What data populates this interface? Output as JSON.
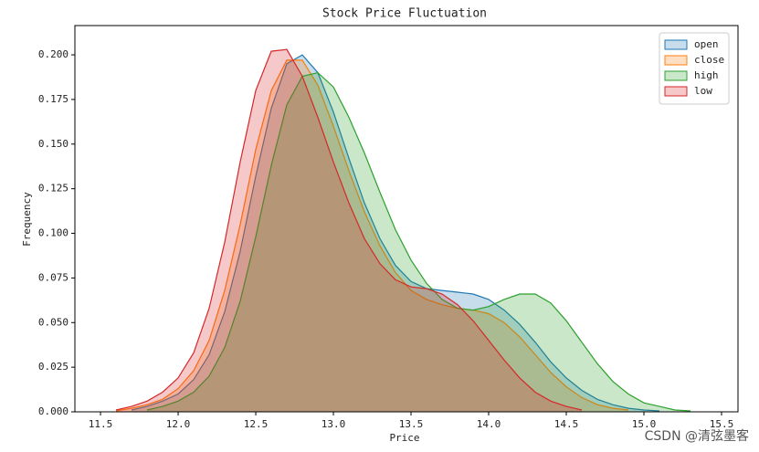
{
  "chart_data": {
    "type": "area",
    "title": "Stock Price Fluctuation",
    "x_label": "Price",
    "y_label": "Frequency",
    "x": [
      11.6,
      11.7,
      11.8,
      11.9,
      12.0,
      12.1,
      12.2,
      12.3,
      12.4,
      12.5,
      12.6,
      12.7,
      12.8,
      12.9,
      13.0,
      13.1,
      13.2,
      13.3,
      13.4,
      13.5,
      13.6,
      13.7,
      13.8,
      13.9,
      14.0,
      14.1,
      14.2,
      14.3,
      14.4,
      14.5,
      14.6,
      14.7,
      14.8,
      14.9,
      15.0,
      15.1,
      15.2,
      15.3,
      15.4
    ],
    "series": [
      {
        "name": "open",
        "color": "#1f77b4",
        "values": [
          null,
          0.001,
          0.003,
          0.006,
          0.01,
          0.018,
          0.032,
          0.056,
          0.09,
          0.132,
          0.17,
          0.195,
          0.2,
          0.19,
          0.168,
          0.142,
          0.117,
          0.097,
          0.082,
          0.073,
          0.069,
          0.068,
          0.067,
          0.066,
          0.063,
          0.057,
          0.049,
          0.039,
          0.028,
          0.019,
          0.012,
          0.007,
          0.004,
          0.002,
          0.001,
          0.0005,
          null,
          null,
          null
        ]
      },
      {
        "name": "close",
        "color": "#ff7f0e",
        "values": [
          0.0005,
          0.002,
          0.004,
          0.007,
          0.013,
          0.023,
          0.04,
          0.068,
          0.105,
          0.147,
          0.18,
          0.197,
          0.197,
          0.183,
          0.16,
          0.135,
          0.112,
          0.093,
          0.078,
          0.068,
          0.063,
          0.06,
          0.058,
          0.057,
          0.055,
          0.05,
          0.042,
          0.032,
          0.022,
          0.014,
          0.008,
          0.004,
          0.002,
          0.001,
          null,
          null,
          null,
          null,
          null
        ]
      },
      {
        "name": "high",
        "color": "#2ca02c",
        "values": [
          null,
          null,
          0.001,
          0.003,
          0.006,
          0.011,
          0.02,
          0.036,
          0.062,
          0.098,
          0.138,
          0.172,
          0.188,
          0.19,
          0.182,
          0.165,
          0.145,
          0.123,
          0.102,
          0.085,
          0.072,
          0.063,
          0.058,
          0.057,
          0.059,
          0.063,
          0.066,
          0.066,
          0.061,
          0.051,
          0.039,
          0.027,
          0.017,
          0.01,
          0.005,
          0.003,
          0.001,
          0.0005,
          null
        ]
      },
      {
        "name": "low",
        "color": "#d62728",
        "values": [
          0.001,
          0.003,
          0.006,
          0.011,
          0.019,
          0.033,
          0.058,
          0.095,
          0.14,
          0.18,
          0.202,
          0.203,
          0.188,
          0.165,
          0.14,
          0.117,
          0.097,
          0.083,
          0.074,
          0.07,
          0.069,
          0.066,
          0.06,
          0.051,
          0.04,
          0.029,
          0.019,
          0.011,
          0.006,
          0.003,
          0.001,
          null,
          null,
          null,
          null,
          null,
          null,
          null,
          null
        ]
      }
    ],
    "xlim": [
      11.335,
      15.606
    ],
    "ylim": [
      0,
      0.2164
    ],
    "xticks": [
      11.5,
      {
        "value": 12,
        "label": "12.0"
      },
      12.5,
      {
        "value": 13,
        "label": "13.0"
      },
      13.5,
      {
        "value": 14,
        "label": "14.0"
      },
      14.5,
      {
        "value": 15,
        "label": "15.0"
      },
      15.5
    ],
    "yticks": [
      {
        "value": 0,
        "label": "0.000"
      },
      {
        "value": 0.025,
        "label": "0.025"
      },
      {
        "value": 0.05,
        "label": "0.050"
      },
      {
        "value": 0.075,
        "label": "0.075"
      },
      {
        "value": 0.1,
        "label": "0.100"
      },
      {
        "value": 0.125,
        "label": "0.125"
      },
      {
        "value": 0.15,
        "label": "0.150"
      },
      {
        "value": 0.175,
        "label": "0.175"
      },
      {
        "value": 0.2,
        "label": "0.200"
      }
    ],
    "legend": "upper right",
    "watermark": "CSDN @清弦墨客"
  }
}
